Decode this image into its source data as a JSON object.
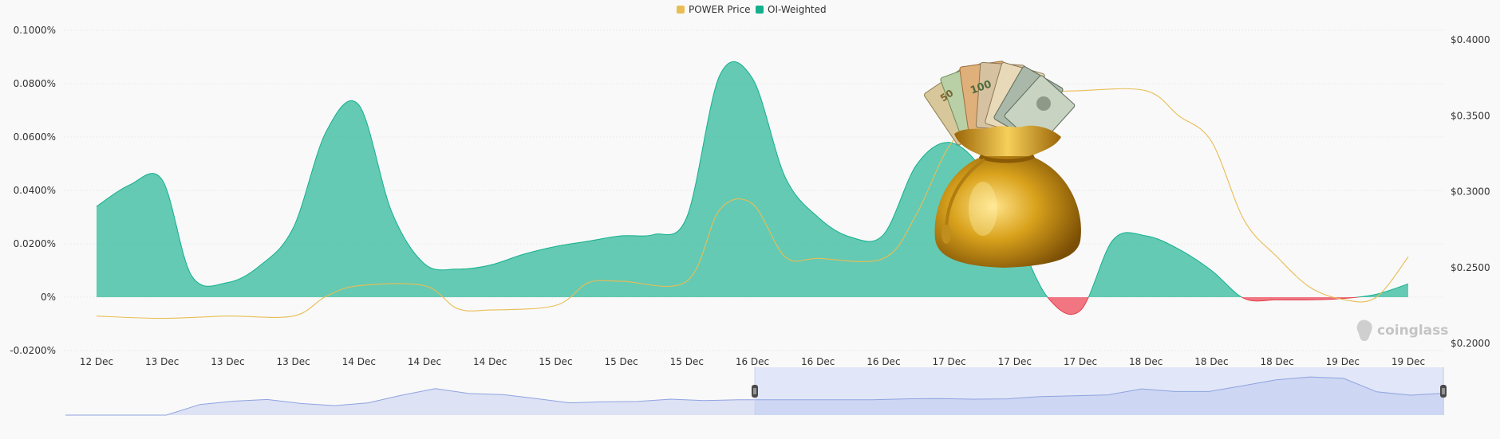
{
  "chart_data": {
    "type": "area",
    "legend": [
      {
        "name": "POWER Price",
        "color": "#e9bd55"
      },
      {
        "name": "OI-Weighted",
        "color": "#14b08d"
      }
    ],
    "negative_color": "#f06774",
    "categories": [
      "12 Dec",
      "13 Dec",
      "13 Dec",
      "13 Dec",
      "14 Dec",
      "14 Dec",
      "14 Dec",
      "15 Dec",
      "15 Dec",
      "15 Dec",
      "16 Dec",
      "16 Dec",
      "16 Dec",
      "17 Dec",
      "17 Dec",
      "17 Dec",
      "18 Dec",
      "18 Dec",
      "18 Dec",
      "19 Dec",
      "19 Dec"
    ],
    "left_axis": {
      "ticks": [
        "-0.0200%",
        "0%",
        "0.0200%",
        "0.0400%",
        "0.0600%",
        "0.0800%",
        "0.1000%"
      ],
      "range": [
        -0.02,
        0.1
      ]
    },
    "right_axis": {
      "ticks": [
        "$0.2000",
        "$0.2500",
        "$0.3000",
        "$0.3500",
        "$0.4000"
      ],
      "range": [
        0.2,
        0.4
      ]
    },
    "series": [
      {
        "name": "OI-Weighted",
        "axis": "left",
        "unit": "%",
        "x": [
          0,
          0.5,
          1,
          1.45,
          2,
          2.5,
          3,
          3.5,
          4,
          4.5,
          5,
          5.5,
          6,
          6.5,
          7,
          7.5,
          8,
          8.5,
          9,
          9.5,
          10,
          10.5,
          11,
          11.5,
          12,
          12.5,
          13,
          13.5,
          14,
          14.5,
          15,
          15.5,
          16,
          16.5,
          17,
          17.5,
          18,
          18.5,
          19,
          19.5,
          20
        ],
        "values": [
          0.034,
          0.042,
          0.044,
          0.008,
          0.0055,
          0.012,
          0.026,
          0.062,
          0.072,
          0.032,
          0.0125,
          0.0105,
          0.012,
          0.016,
          0.019,
          0.021,
          0.023,
          0.0235,
          0.03,
          0.083,
          0.082,
          0.045,
          0.03,
          0.0225,
          0.0235,
          0.0495,
          0.058,
          0.048,
          0.025,
          0.0,
          -0.005,
          0.0215,
          0.023,
          0.018,
          0.01,
          -0.0005,
          -0.001,
          -0.001,
          -0.0005,
          0.001,
          0.005
        ]
      },
      {
        "name": "POWER Price",
        "axis": "right",
        "unit": "$",
        "x": [
          0,
          1,
          2,
          3,
          3.5,
          4,
          5,
          5.5,
          6,
          7,
          7.5,
          8,
          9,
          9.5,
          10,
          10.5,
          11,
          12,
          12.5,
          13,
          13.5,
          14,
          14.5,
          15,
          16,
          16.5,
          17,
          17.5,
          18,
          18.5,
          19,
          19.5,
          20
        ],
        "values": [
          0.218,
          0.2165,
          0.218,
          0.218,
          0.231,
          0.238,
          0.238,
          0.223,
          0.222,
          0.225,
          0.24,
          0.241,
          0.241,
          0.288,
          0.292,
          0.257,
          0.256,
          0.256,
          0.285,
          0.33,
          0.35,
          0.36,
          0.365,
          0.3665,
          0.3665,
          0.35,
          0.333,
          0.281,
          0.257,
          0.237,
          0.229,
          0.23,
          0.257
        ]
      }
    ],
    "navigator": {
      "values": [
        0.2,
        0.2,
        0.2,
        0.2,
        0.232,
        0.242,
        0.247,
        0.235,
        0.2285,
        0.237,
        0.26,
        0.28,
        0.265,
        0.262,
        0.25,
        0.237,
        0.24,
        0.241,
        0.248,
        0.244,
        0.246,
        0.246,
        0.246,
        0.246,
        0.246,
        0.249,
        0.25,
        0.248,
        0.249,
        0.256,
        0.258,
        0.261,
        0.279,
        0.271,
        0.271,
        0.288,
        0.306,
        0.315,
        0.311,
        0.27,
        0.26,
        0.266
      ],
      "selected_range": [
        0.5,
        1
      ]
    }
  },
  "watermark": {
    "text": "coinglass"
  },
  "overlay_image": {
    "name": "money bag with banknotes"
  }
}
